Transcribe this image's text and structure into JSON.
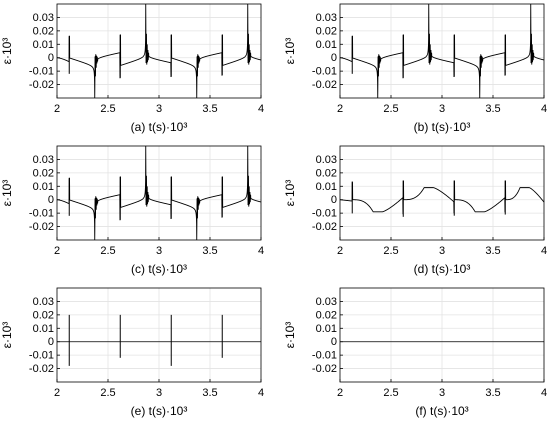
{
  "chart_data": [
    {
      "type": "line",
      "panel_label": "(a)",
      "xlabel": "t(s)·10³",
      "ylabel": "ε·10³",
      "xlim": [
        2,
        4
      ],
      "ylim": [
        -0.03,
        0.04
      ],
      "xticks": [
        "2",
        "2.5",
        "3",
        "3.5",
        "4"
      ],
      "yticks": [
        "-0.02",
        "-0.01",
        "0",
        "0.01",
        "0.02",
        "0.03"
      ],
      "grid": true,
      "variant": "full"
    },
    {
      "type": "line",
      "panel_label": "(b)",
      "xlabel": "t(s)·10³",
      "ylabel": "ε·10³",
      "xlim": [
        2,
        4
      ],
      "ylim": [
        -0.03,
        0.04
      ],
      "xticks": [
        "2",
        "2.5",
        "3",
        "3.5",
        "4"
      ],
      "yticks": [
        "-0.02",
        "-0.01",
        "0",
        "0.01",
        "0.02",
        "0.03"
      ],
      "grid": true,
      "variant": "full"
    },
    {
      "type": "line",
      "panel_label": "(c)",
      "xlabel": "t(s)·10³",
      "ylabel": "ε·10³",
      "xlim": [
        2,
        4
      ],
      "ylim": [
        -0.03,
        0.04
      ],
      "xticks": [
        "2",
        "2.5",
        "3",
        "3.5",
        "4"
      ],
      "yticks": [
        "-0.02",
        "-0.01",
        "0",
        "0.01",
        "0.02",
        "0.03"
      ],
      "grid": true,
      "variant": "full"
    },
    {
      "type": "line",
      "panel_label": "(d)",
      "xlabel": "t(s)·10³",
      "ylabel": "ε·10³",
      "xlim": [
        2,
        4
      ],
      "ylim": [
        -0.03,
        0.04
      ],
      "xticks": [
        "2",
        "2.5",
        "3",
        "3.5",
        "4"
      ],
      "yticks": [
        "-0.02",
        "-0.01",
        "0",
        "0.01",
        "0.02",
        "0.03"
      ],
      "grid": true,
      "variant": "smooth"
    },
    {
      "type": "line",
      "panel_label": "(e)",
      "xlabel": "t(s)·10³",
      "ylabel": "ε·10³",
      "xlim": [
        2,
        4
      ],
      "ylim": [
        -0.03,
        0.04
      ],
      "xticks": [
        "2",
        "2.5",
        "3",
        "3.5",
        "4"
      ],
      "yticks": [
        "-0.02",
        "-0.01",
        "0",
        "0.01",
        "0.02",
        "0.03"
      ],
      "grid": true,
      "variant": "spikes"
    },
    {
      "type": "line",
      "panel_label": "(f)",
      "xlabel": "t(s)·10³",
      "ylabel": "ε·10³",
      "xlim": [
        2,
        4
      ],
      "ylim": [
        -0.03,
        0.04
      ],
      "xticks": [
        "2",
        "2.5",
        "3",
        "3.5",
        "4"
      ],
      "yticks": [
        "-0.02",
        "-0.01",
        "0",
        "0.01",
        "0.02",
        "0.03"
      ],
      "grid": true,
      "variant": "flat"
    }
  ],
  "series_features": {
    "jumps": [
      {
        "t": 2.12,
        "y_top": 0.016,
        "y_bottom": -0.012
      },
      {
        "t": 2.62,
        "y_top": 0.017,
        "y_bottom": -0.015
      },
      {
        "t": 3.12,
        "y_top": 0.017,
        "y_bottom": -0.014
      },
      {
        "t": 3.62,
        "y_top": 0.017,
        "y_bottom": -0.013
      }
    ],
    "negative_peaks": [
      {
        "t": 2.37,
        "y": -0.026
      },
      {
        "t": 3.37,
        "y": -0.026
      }
    ],
    "positive_peaks": [
      {
        "t": 2.87,
        "y": 0.039
      },
      {
        "t": 3.87,
        "y": 0.039
      }
    ],
    "smooth_plateau_level": 0.009,
    "spikes": [
      {
        "t": 2.12,
        "y_top": 0.02,
        "y_bottom": -0.018
      },
      {
        "t": 2.62,
        "y_top": 0.02,
        "y_bottom": -0.012
      },
      {
        "t": 3.12,
        "y_top": 0.02,
        "y_bottom": -0.018
      },
      {
        "t": 3.62,
        "y_top": 0.02,
        "y_bottom": -0.012
      }
    ]
  }
}
